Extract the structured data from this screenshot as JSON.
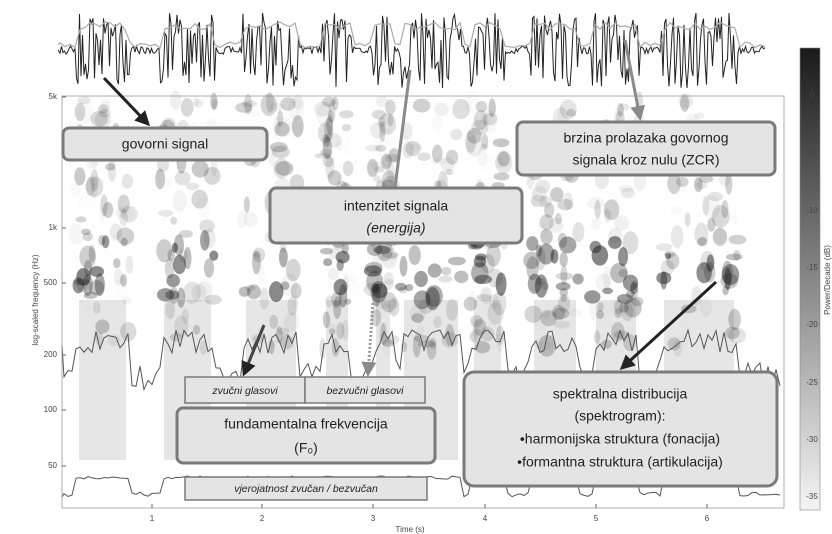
{
  "axes": {
    "y_label": "log-scaled frequency (Hz)",
    "y_ticks": [
      "5k",
      "1k",
      "500",
      "200",
      "100",
      "50"
    ],
    "x_label": "Time (s)",
    "x_ticks": [
      "1",
      "2",
      "3",
      "4",
      "5",
      "6"
    ],
    "colorbar_label": "Power/Decade (dB)",
    "colorbar_ticks": [
      "0",
      "-5",
      "-10",
      "-15",
      "-20",
      "-25",
      "-30",
      "-35"
    ]
  },
  "annotations": {
    "speech_signal": "govorni signal",
    "intensity": [
      "intenzitet signala",
      "(energija)"
    ],
    "zcr": [
      "brzina prolazaka govornog",
      "signala kroz nulu (ZCR)"
    ],
    "fundamental": [
      "fundamentalna frekvencija",
      "(F₀)"
    ],
    "voiced": "zvučni glasovi",
    "unvoiced": "bezvučni glasovi",
    "probability": "vjerojatnost  zvučan / bezvučan",
    "spectral": [
      "spektralna distribucija",
      "(spektrogram):",
      "•harmonijska struktura (fonacija)",
      "•formantna struktura (artikulacija)"
    ]
  }
}
